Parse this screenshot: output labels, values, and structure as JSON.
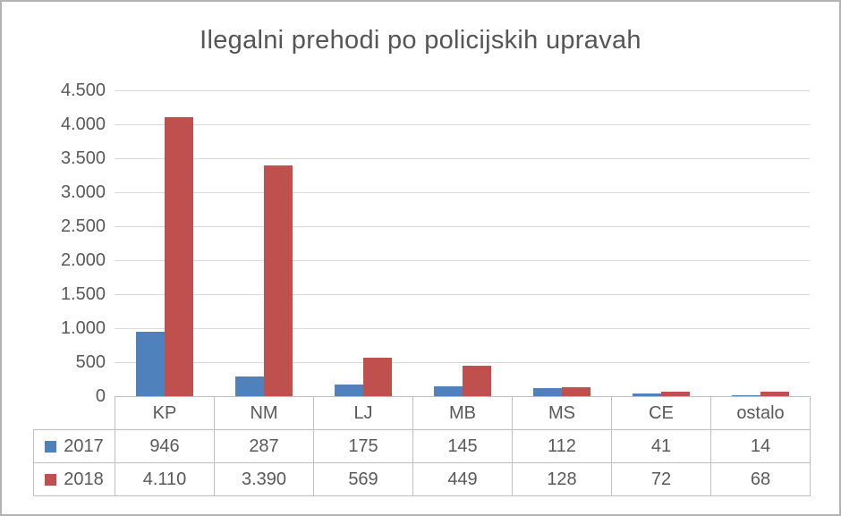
{
  "chart_data": {
    "type": "bar",
    "title": "Ilegalni prehodi po policijskih upravah",
    "xlabel": "",
    "ylabel": "",
    "categories": [
      "KP",
      "NM",
      "LJ",
      "MB",
      "MS",
      "CE",
      "ostalo"
    ],
    "series": [
      {
        "name": "2017",
        "color": "#4F81BD",
        "values": [
          946,
          287,
          175,
          145,
          112,
          41,
          14
        ],
        "labels": [
          "946",
          "287",
          "175",
          "145",
          "112",
          "41",
          "14"
        ]
      },
      {
        "name": "2018",
        "color": "#C0504D",
        "values": [
          4110,
          3390,
          569,
          449,
          128,
          72,
          68
        ],
        "labels": [
          "4.110",
          "3.390",
          "569",
          "449",
          "128",
          "72",
          "68"
        ]
      }
    ],
    "ylim": [
      0,
      4500
    ],
    "y_ticks": [
      {
        "value": 0,
        "label": "0"
      },
      {
        "value": 500,
        "label": "500"
      },
      {
        "value": 1000,
        "label": "1.000"
      },
      {
        "value": 1500,
        "label": "1.500"
      },
      {
        "value": 2000,
        "label": "2.000"
      },
      {
        "value": 2500,
        "label": "2.500"
      },
      {
        "value": 3000,
        "label": "3.000"
      },
      {
        "value": 3500,
        "label": "3.500"
      },
      {
        "value": 4000,
        "label": "4.000"
      },
      {
        "value": 4500,
        "label": "4.500"
      }
    ],
    "grid": true,
    "legend_position": "data-table-left"
  },
  "colors": {
    "series_2017": "#4F81BD",
    "series_2018": "#C0504D",
    "gridline": "#D9D9D9",
    "table_border": "#BFBFBF",
    "text": "#595959",
    "figure_border": "#B3B3B3"
  }
}
